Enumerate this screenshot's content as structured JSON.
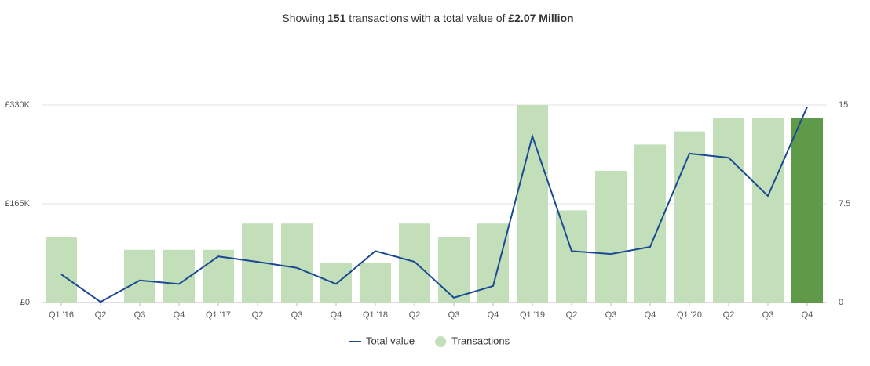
{
  "chart_data": {
    "type": "bar-line",
    "title_parts": [
      "Showing",
      "151",
      "transactions with a total value of",
      "£2.07 Million"
    ],
    "categories": [
      "Q1 '16",
      "Q2",
      "Q3",
      "Q4",
      "Q1 '17",
      "Q2",
      "Q3",
      "Q4",
      "Q1 '18",
      "Q2",
      "Q3",
      "Q4",
      "Q1 '19",
      "Q2",
      "Q3",
      "Q4",
      "Q1 '20",
      "Q2",
      "Q3",
      "Q4"
    ],
    "series": [
      {
        "name": "Total value",
        "type": "line",
        "color": "#1b4a92",
        "values": [
          47000,
          1000,
          37000,
          31000,
          77000,
          68000,
          58000,
          31000,
          86000,
          68000,
          8000,
          27500,
          278000,
          86000,
          81000,
          93000,
          249000,
          242000,
          178000,
          327000
        ]
      },
      {
        "name": "Transactions",
        "type": "bar",
        "axis": "y2",
        "color": "#c3dfba",
        "colors": [
          "#c3dfba",
          "#c3dfba",
          "#c3dfba",
          "#c3dfba",
          "#c3dfba",
          "#c3dfba",
          "#c3dfba",
          "#c3dfba",
          "#c3dfba",
          "#c3dfba",
          "#c3dfba",
          "#c3dfba",
          "#c3dfba",
          "#c3dfba",
          "#c3dfba",
          "#c3dfba",
          "#c3dfba",
          "#c3dfba",
          "#c3dfba",
          "#5e9a48"
        ],
        "values": [
          5,
          0,
          4,
          4,
          4,
          6,
          6,
          3,
          3,
          6,
          5,
          6,
          15,
          7,
          10,
          12,
          13,
          14,
          14,
          14
        ]
      }
    ],
    "ylim": [
      0,
      330000
    ],
    "yticks": [
      {
        "value": 0,
        "label": "£0"
      },
      {
        "value": 165000,
        "label": "£165K"
      },
      {
        "value": 330000,
        "label": "£330K"
      }
    ],
    "y2lim": [
      0,
      15
    ],
    "y2ticks": [
      0,
      7.5,
      15
    ],
    "grid": true,
    "legend": "bottom"
  }
}
